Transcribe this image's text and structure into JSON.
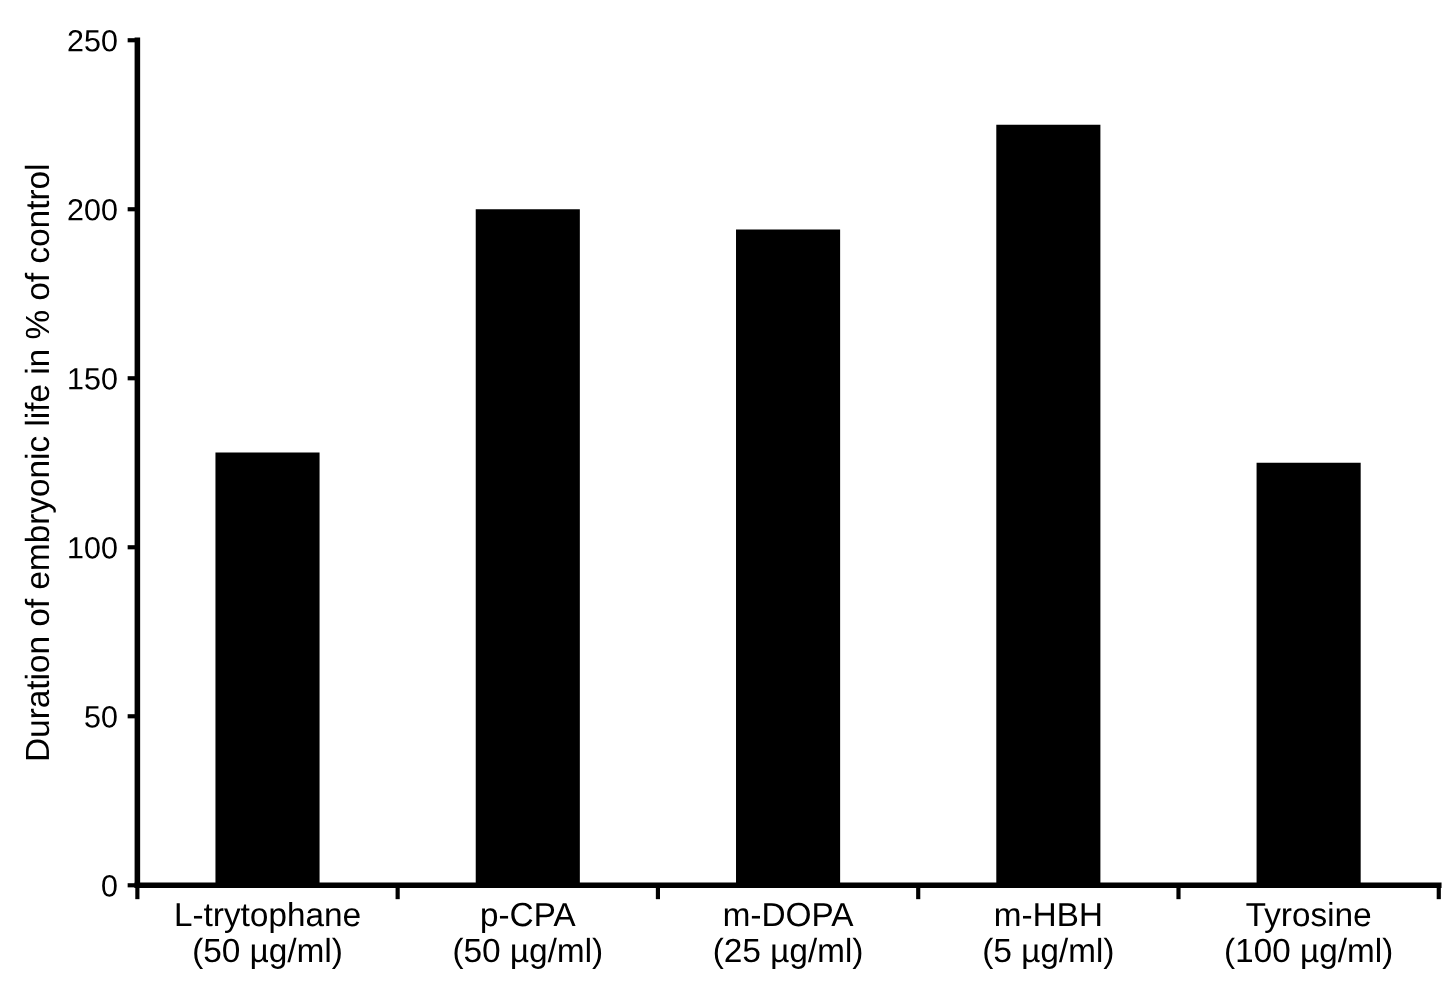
{
  "chart_data": {
    "type": "bar",
    "ylabel": "Duration of embryonic life in % of control",
    "categories": [
      "L-trytophane\n(50 µg/ml)",
      "p-CPA\n(50 µg/ml)",
      "m-DOPA\n(25 µg/ml)",
      "m-HBH\n(5 µg/ml)",
      "Tyrosine\n(100 µg/ml)"
    ],
    "values": [
      128,
      200,
      194,
      225,
      125
    ],
    "color": "#000000",
    "ylim": [
      0,
      250
    ],
    "yticks": [
      0,
      50,
      100,
      150,
      200,
      250
    ],
    "grid": false,
    "legend": false
  }
}
